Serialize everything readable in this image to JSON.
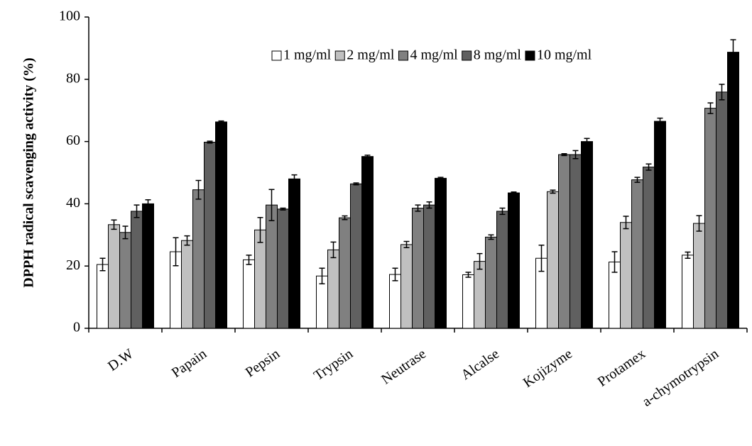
{
  "chart_data": {
    "type": "bar",
    "y_label": "DPPH radical scavenging activity (%)",
    "categories": [
      "D.W",
      "Papain",
      "Pepsin",
      "Trypsin",
      "Neutrase",
      "Alcalse",
      "Kojizyme",
      "Protamex",
      "a-chymotrypsin"
    ],
    "series": [
      {
        "name": "1 mg/ml",
        "color": "#ffffff",
        "values": [
          20.5,
          24.6,
          22,
          16.8,
          17.3,
          17.2,
          22.5,
          21.3,
          23.5
        ],
        "errors": [
          2,
          4.5,
          1.5,
          2.5,
          2,
          0.8,
          4.2,
          3.3,
          1
        ]
      },
      {
        "name": "2 mg/ml",
        "color": "#c0c0c0",
        "values": [
          33.3,
          28.2,
          31.6,
          25.2,
          26.9,
          21.5,
          43.9,
          34,
          33.7
        ],
        "errors": [
          1.5,
          1.5,
          4,
          2.5,
          1,
          2.5,
          0.5,
          2,
          2.5
        ]
      },
      {
        "name": "4 mg/ml",
        "color": "#808080",
        "values": [
          30.8,
          44.5,
          39.6,
          35.5,
          38.6,
          29.3,
          55.8,
          47.7,
          70.7
        ],
        "errors": [
          2,
          3,
          5,
          0.6,
          1,
          0.7,
          0.3,
          0.8,
          1.7
        ]
      },
      {
        "name": "8 mg/ml",
        "color": "#606060",
        "values": [
          37.6,
          59.8,
          38.3,
          46.4,
          39.6,
          37.6,
          55.8,
          51.8,
          75.9
        ],
        "errors": [
          2,
          0.3,
          0.3,
          0.3,
          1,
          1,
          1.3,
          1,
          2.5
        ]
      },
      {
        "name": "10 mg/ml",
        "color": "#000000",
        "values": [
          40,
          66.3,
          48,
          55.2,
          48.2,
          43.5,
          60,
          66.5,
          88.7
        ],
        "errors": [
          1.3,
          0.3,
          1.3,
          0.4,
          0.3,
          0.3,
          1,
          1,
          4
        ]
      }
    ],
    "ylim": [
      0,
      100
    ],
    "yticks": [
      0,
      20,
      40,
      60,
      80,
      100
    ],
    "grid": false,
    "legend": "top-right"
  }
}
